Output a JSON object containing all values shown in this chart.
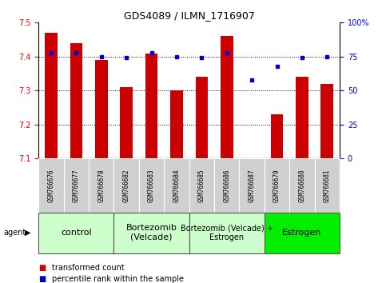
{
  "title": "GDS4089 / ILMN_1716907",
  "samples": [
    "GSM766676",
    "GSM766677",
    "GSM766678",
    "GSM766682",
    "GSM766683",
    "GSM766684",
    "GSM766685",
    "GSM766686",
    "GSM766687",
    "GSM766679",
    "GSM766680",
    "GSM766681"
  ],
  "red_values": [
    7.47,
    7.44,
    7.39,
    7.31,
    7.41,
    7.3,
    7.34,
    7.46,
    7.1,
    7.23,
    7.34,
    7.32
  ],
  "blue_values": [
    78,
    78,
    75,
    74,
    78,
    75,
    74,
    78,
    58,
    68,
    74,
    75
  ],
  "ylim_left": [
    7.1,
    7.5
  ],
  "ylim_right": [
    0,
    100
  ],
  "yticks_left": [
    7.1,
    7.2,
    7.3,
    7.4,
    7.5
  ],
  "yticks_right": [
    0,
    25,
    50,
    75,
    100
  ],
  "hgrid_lines": [
    7.2,
    7.3,
    7.4
  ],
  "groups": [
    {
      "label": "control",
      "start": 0,
      "end": 3,
      "color": "#ccffcc",
      "font_size": 8
    },
    {
      "label": "Bortezomib\n(Velcade)",
      "start": 3,
      "end": 6,
      "color": "#ccffcc",
      "font_size": 8
    },
    {
      "label": "Bortezomib (Velcade) +\nEstrogen",
      "start": 6,
      "end": 9,
      "color": "#ccffcc",
      "font_size": 7
    },
    {
      "label": "Estrogen",
      "start": 9,
      "end": 12,
      "color": "#00ee00",
      "font_size": 8
    }
  ],
  "legend_red": "transformed count",
  "legend_blue": "percentile rank within the sample",
  "base": 7.1,
  "bar_color": "#cc0000",
  "dot_color": "#0000cc",
  "sample_box_color": "#d0d0d0",
  "agent_label": "agent",
  "bar_width": 0.5
}
